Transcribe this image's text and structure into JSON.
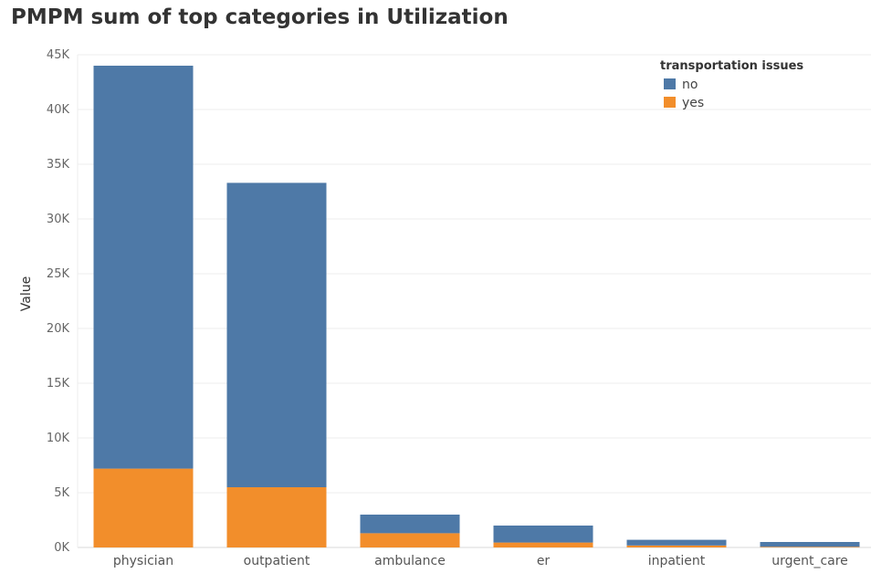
{
  "chart_data": {
    "type": "bar",
    "stacked": true,
    "title": "PMPM sum of top categories in Utilization",
    "xlabel": "",
    "ylabel": "Value",
    "ylim": [
      0,
      45000
    ],
    "yticks": [
      {
        "value": 0,
        "label": "0K"
      },
      {
        "value": 5000,
        "label": "5K"
      },
      {
        "value": 10000,
        "label": "10K"
      },
      {
        "value": 15000,
        "label": "15K"
      },
      {
        "value": 20000,
        "label": "20K"
      },
      {
        "value": 25000,
        "label": "25K"
      },
      {
        "value": 30000,
        "label": "30K"
      },
      {
        "value": 35000,
        "label": "35K"
      },
      {
        "value": 40000,
        "label": "40K"
      },
      {
        "value": 45000,
        "label": "45K"
      }
    ],
    "grid": true,
    "categories": [
      "physician",
      "outpatient",
      "ambulance",
      "er",
      "inpatient",
      "urgent_care"
    ],
    "legend": {
      "title": "transportation issues",
      "placement": "top-right"
    },
    "series": [
      {
        "name": "yes",
        "color": "#f28e2b",
        "values": [
          7200,
          5500,
          1300,
          450,
          180,
          60
        ]
      },
      {
        "name": "no",
        "color": "#4e79a7",
        "values": [
          36800,
          27800,
          1700,
          1550,
          520,
          440
        ]
      }
    ],
    "legend_order": [
      "no",
      "yes"
    ]
  }
}
